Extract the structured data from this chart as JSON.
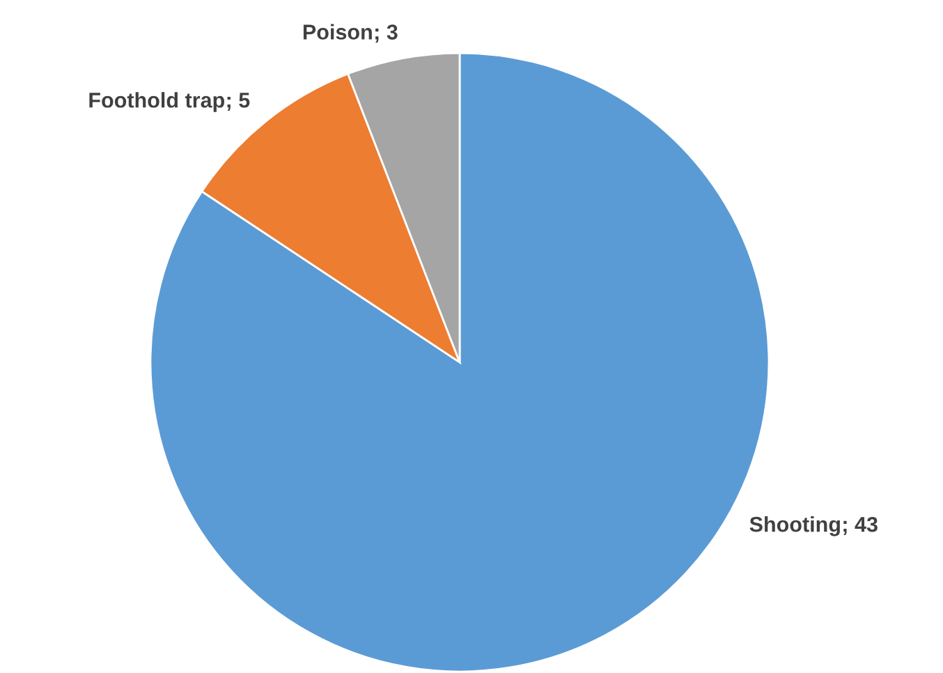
{
  "chart_data": {
    "type": "pie",
    "categories": [
      "Shooting",
      "Foothold trap",
      "Poison"
    ],
    "values": [
      43,
      5,
      3
    ],
    "colors": [
      "#5b9bd5",
      "#ed7d31",
      "#a5a5a5"
    ],
    "data_labels": true,
    "value_labels": [
      "; 43",
      "; 5",
      "; 3"
    ],
    "legend": false
  }
}
